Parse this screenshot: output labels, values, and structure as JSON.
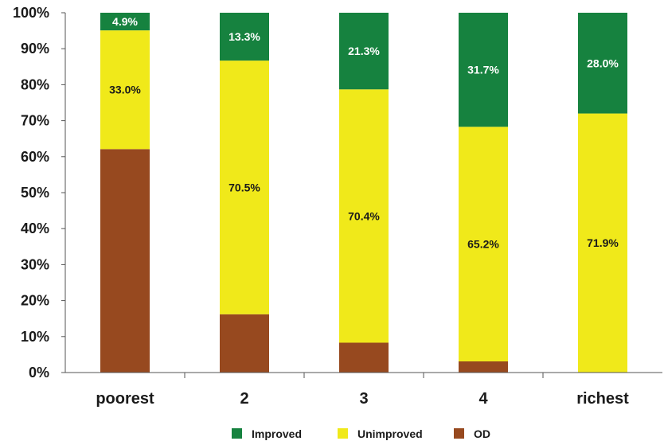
{
  "chart_data": {
    "type": "bar",
    "stacked": true,
    "categories": [
      "poorest",
      "2",
      "3",
      "4",
      "richest"
    ],
    "series": [
      {
        "name": "OD",
        "color": "#97491F",
        "values": [
          62.1,
          16.2,
          8.3,
          3.1,
          0.1
        ]
      },
      {
        "name": "Unimproved",
        "color": "#F0E91A",
        "values": [
          33.0,
          70.5,
          70.4,
          65.2,
          71.9
        ],
        "labels": [
          "33.0%",
          "70.5%",
          "70.4%",
          "65.2%",
          "71.9%"
        ],
        "label_color": "#1a1a1a"
      },
      {
        "name": "Improved",
        "color": "#16823F",
        "values": [
          4.9,
          13.3,
          21.3,
          31.7,
          28.0
        ],
        "labels": [
          "4.9%",
          "13.3%",
          "21.3%",
          "31.7%",
          "28.0%"
        ],
        "label_color": "#ffffff"
      }
    ],
    "y_ticks": [
      "0%",
      "10%",
      "20%",
      "30%",
      "40%",
      "50%",
      "60%",
      "70%",
      "80%",
      "90%",
      "100%"
    ],
    "ylim": [
      0,
      100
    ],
    "grid": false,
    "legend": {
      "placement": "bottom",
      "entries": [
        {
          "label": "Improved",
          "color": "#16823F"
        },
        {
          "label": "Unimproved",
          "color": "#F0E91A"
        },
        {
          "label": "OD",
          "color": "#97491F"
        }
      ]
    }
  }
}
